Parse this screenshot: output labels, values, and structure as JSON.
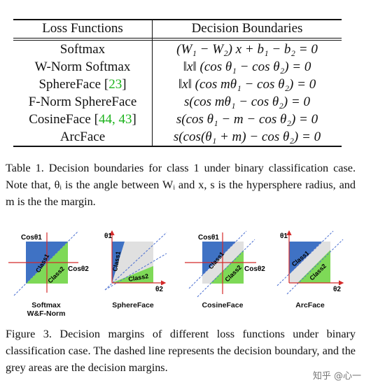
{
  "table": {
    "headers": [
      "Loss Functions",
      "Decision Boundaries"
    ],
    "rows": [
      {
        "name": "Softmax",
        "cite": "",
        "boundary": "(W₁ − W₂) x + b₁ − b₂ = 0"
      },
      {
        "name": "W-Norm Softmax",
        "cite": "",
        "boundary": "‖x‖ (cos θ₁ − cos θ₂) = 0"
      },
      {
        "name": "SphereFace [",
        "cite": "23",
        "close": "]",
        "boundary": "‖x‖ (cos mθ₁ − cos θ₂) = 0"
      },
      {
        "name": "F-Norm SphereFace",
        "cite": "",
        "boundary": "s(cos mθ₁ − cos θ₂) = 0"
      },
      {
        "name": "CosineFace [",
        "cite": "44, 43",
        "close": "]",
        "boundary": "s(cos θ₁ − m − cos θ₂) = 0"
      },
      {
        "name": "ArcFace",
        "cite": "",
        "boundary": "s(cos(θ₁ + m) − cos θ₂) = 0"
      }
    ]
  },
  "table_caption": "Table 1. Decision boundaries for class 1 under binary classification case. Note that, θᵢ is the angle between Wᵢ and x, s is the hypersphere radius, and m is the the margin.",
  "figure": {
    "panels": [
      {
        "label_line1": "Softmax",
        "label_line2": "W&F-Norm",
        "x_axis": "Cosθ2",
        "y_axis": "Cosθ1",
        "class1": "Class1",
        "class2": "Class2"
      },
      {
        "label_line1": "SphereFace",
        "label_line2": "",
        "x_axis": "θ2",
        "y_axis": "θ1",
        "class1": "Class1",
        "class2": "Class2"
      },
      {
        "label_line1": "CosineFace",
        "label_line2": "",
        "x_axis": "Cosθ2",
        "y_axis": "Cosθ1",
        "class1": "Class1",
        "class2": "Class2"
      },
      {
        "label_line1": "ArcFace",
        "label_line2": "",
        "x_axis": "θ2",
        "y_axis": "θ1",
        "class1": "Class1",
        "class2": "Class2"
      }
    ],
    "colors": {
      "class1": "#3f72c4",
      "class2": "#7ed957",
      "margin": "#e0e0e0",
      "axis": "#d42a2a",
      "dash": "#4a6fd1"
    }
  },
  "figure_caption": "Figure 3. Decision margins of different loss functions under binary classification case. The dashed line represents the decision boundary, and the grey areas are the decision margins.",
  "watermark": "知乎 @心一"
}
